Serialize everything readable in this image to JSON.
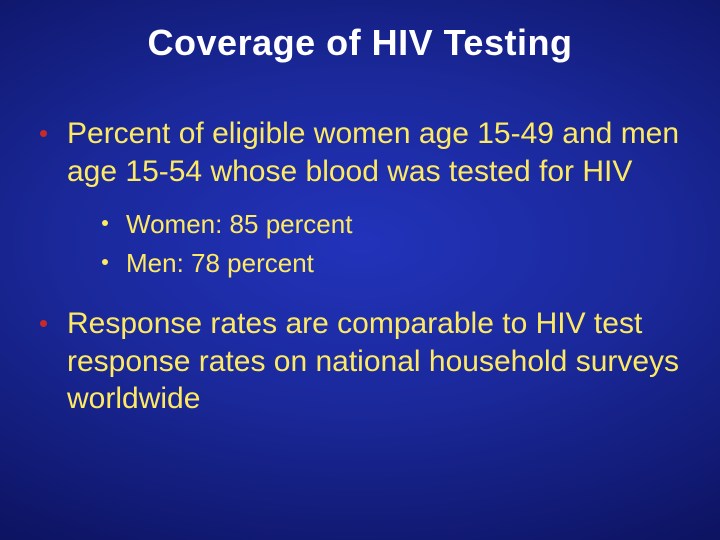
{
  "colors": {
    "title": "#ffffff",
    "body_text": "#feea62",
    "bullet_l1": "#c82a2a",
    "bullet_l2": "#feea62"
  },
  "fontsize": {
    "title": 36,
    "body": 30,
    "sub": 26
  },
  "title": "Coverage of HIV Testing",
  "bullets": [
    {
      "text": "Percent of eligible women age 15-49 and men age 15-54 whose blood was tested for HIV",
      "sub": [
        "Women: 85 percent",
        "Men: 78 percent"
      ]
    },
    {
      "text": "Response rates are comparable to HIV test response rates on national household surveys worldwide",
      "sub": []
    }
  ]
}
